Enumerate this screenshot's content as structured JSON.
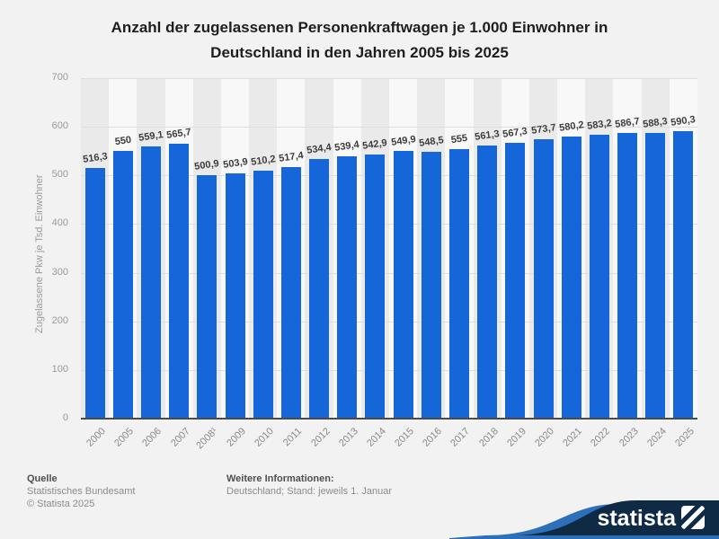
{
  "title": {
    "line1": "Anzahl der zugelassenen Personenkraftwagen je 1.000 Einwohner in",
    "line2": "Deutschland in den Jahren 2005 bis 2025"
  },
  "chart_data": {
    "type": "bar",
    "title": "Anzahl der zugelassenen Personenkraftwagen je 1.000 Einwohner in Deutschland in den Jahren 2005 bis 2025",
    "categories": [
      "2000",
      "2005",
      "2006",
      "2007",
      "2008¹",
      "2009",
      "2010",
      "2011",
      "2012",
      "2013",
      "2014",
      "2015",
      "2016",
      "2017",
      "2018",
      "2019",
      "2020",
      "2021",
      "2022",
      "2023",
      "2024",
      "2025"
    ],
    "values": [
      516.3,
      550,
      559.1,
      565.7,
      500.9,
      503.9,
      510.2,
      517.4,
      534.4,
      539.4,
      542.9,
      549.9,
      548.5,
      555,
      561.3,
      567.3,
      573.7,
      580.2,
      583.2,
      586.7,
      588.3,
      590.3
    ],
    "value_labels": [
      "516,3",
      "550",
      "559,1",
      "565,7",
      "500,9",
      "503,9",
      "510,2",
      "517,4",
      "534,4",
      "539,4",
      "542,9",
      "549,9",
      "548,5",
      "555",
      "561,3",
      "567,3",
      "573,7",
      "580,2",
      "583,2",
      "586,7",
      "588,3",
      "590,3"
    ],
    "xlabel": "",
    "ylabel": "Zugelassene Pkw je Tsd. Einwohner",
    "ylim": [
      0,
      700
    ],
    "yticks": [
      0,
      100,
      200,
      300,
      400,
      500,
      600,
      700
    ],
    "grid": true,
    "legend_position": "none",
    "bar_color": "#1566d9",
    "stripe_color_even": "#eaeaea",
    "stripe_color_odd": "#f8f8f8"
  },
  "footer": {
    "source_label": "Quelle",
    "source": "Statistisches Bundesamt",
    "copyright": "© Statista 2025",
    "info_label": "Weitere Informationen:",
    "info": "Deutschland; Stand: jeweils 1. Januar"
  },
  "branding": {
    "logo_text": "statista",
    "banner_navy": "#0e2a45",
    "banner_blue": "#2e6fba"
  }
}
